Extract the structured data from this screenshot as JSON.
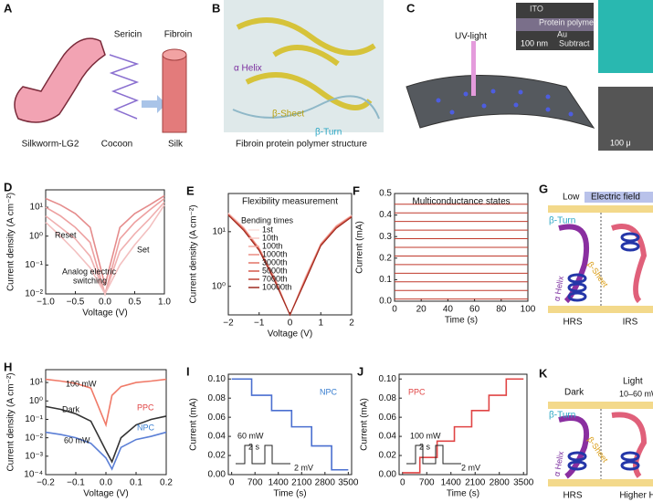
{
  "figure": {
    "a": {
      "label": "A",
      "sericin": "Sericin",
      "fibroin": "Fibroin",
      "silkworm": "Silkworm-LG2",
      "cocoon": "Cocoon",
      "silk": "Silk"
    },
    "b": {
      "label": "B",
      "helix": "α Helix",
      "sheet": "β-Sheet",
      "turn": "β-Turn",
      "caption": "Fibroin protein polymer structure"
    },
    "c": {
      "label": "C",
      "uv": "UV-light",
      "ito": "ITO",
      "protein": "Protein polymer",
      "au": "Au",
      "substrate": "Subtract",
      "scale1": "100 nm",
      "scale2": "100 μ"
    },
    "g": {
      "label": "G",
      "low": "Low",
      "field": "Electric field",
      "turn": "β-Turn",
      "sheet": "β-Sheet",
      "helix": "α Helix",
      "left": "HRS",
      "right": "IRS"
    },
    "k": {
      "label": "K",
      "dark": "Dark",
      "light": "Light",
      "power": "10–60 mW",
      "turn": "β-Turn",
      "sheet": "β-Sheet",
      "helix": "α Helix",
      "left": "HRS",
      "right": "Higher HRS"
    }
  },
  "chart_data": [
    {
      "panel": "D",
      "type": "line",
      "xlabel": "Voltage (V)",
      "ylabel": "Current density (A cm⁻²)",
      "yscale": "log",
      "x": [
        -1,
        -0.75,
        -0.5,
        -0.25,
        0,
        0.25,
        0.5,
        0.75,
        1
      ],
      "xlim": [
        -1,
        1
      ],
      "xticks": [
        {
          "value": -1,
          "label": "−1.0"
        },
        {
          "value": -0.5,
          "label": "−0.5"
        },
        {
          "value": 0,
          "label": "0.0"
        },
        {
          "value": 0.5,
          "label": "0.5"
        },
        {
          "value": 1,
          "label": "1.0"
        }
      ],
      "ylim": [
        0.01,
        40
      ],
      "yticks": [
        {
          "value": 0.01,
          "label": "10⁻²"
        },
        {
          "value": 0.1,
          "label": "10⁻¹"
        },
        {
          "value": 1,
          "label": "10⁰"
        },
        {
          "value": 10,
          "label": "10¹"
        }
      ],
      "annotations": [
        "Reset",
        "Set",
        "Analog electric",
        "switching"
      ],
      "series": [
        {
          "color": "#e58c8c",
          "values": [
            20,
            12,
            6,
            2,
            0.02,
            2,
            6,
            12,
            25
          ]
        },
        {
          "color": "#eda0a0",
          "values": [
            10,
            5,
            2,
            0.6,
            0.01,
            0.8,
            3,
            8,
            20
          ]
        },
        {
          "color": "#f0b0b0",
          "values": [
            5,
            2,
            0.8,
            0.2,
            0.01,
            0.3,
            1.2,
            4,
            15
          ]
        },
        {
          "color": "#f3c0c0",
          "values": [
            3,
            1,
            0.3,
            0.08,
            0.01,
            0.1,
            0.5,
            2,
            12
          ]
        }
      ]
    },
    {
      "panel": "E",
      "type": "line",
      "title": "Flexibility measurement",
      "xlabel": "Voltage (V)",
      "ylabel": "Current density (A cm⁻²)",
      "yscale": "log",
      "legend_title": "Bending times",
      "x": [
        -2,
        -1.5,
        -1,
        -0.5,
        0,
        0.5,
        1,
        1.5,
        2
      ],
      "xlim": [
        -2,
        2
      ],
      "xticks": [
        {
          "value": -2,
          "label": "−2"
        },
        {
          "value": -1,
          "label": "−1"
        },
        0,
        1,
        2
      ],
      "ylim": [
        0.3,
        50
      ],
      "yticks": [
        {
          "value": 1,
          "label": "10⁰"
        },
        {
          "value": 10,
          "label": "10¹"
        }
      ],
      "series": [
        {
          "name": "1st",
          "color": "#fbe0dc",
          "values": [
            22,
            12,
            5,
            1.5,
            0.3,
            1.5,
            6,
            13,
            20
          ]
        },
        {
          "name": "10th",
          "color": "#f7c8c2",
          "values": [
            22,
            12,
            5.1,
            1.5,
            0.3,
            1.5,
            6.1,
            13,
            20
          ]
        },
        {
          "name": "100th",
          "color": "#f2aaa2",
          "values": [
            21,
            11.5,
            5,
            1.4,
            0.3,
            1.4,
            6,
            12.5,
            19.5
          ]
        },
        {
          "name": "1000th",
          "color": "#eb8e84",
          "values": [
            21,
            11.5,
            4.9,
            1.4,
            0.3,
            1.4,
            5.9,
            12.5,
            19.5
          ]
        },
        {
          "name": "3000th",
          "color": "#e27366",
          "values": [
            20.5,
            11,
            4.8,
            1.35,
            0.3,
            1.35,
            5.8,
            12,
            19
          ]
        },
        {
          "name": "5000th",
          "color": "#d4584a",
          "values": [
            20.5,
            11,
            4.7,
            1.3,
            0.3,
            1.3,
            5.7,
            12,
            19
          ]
        },
        {
          "name": "7000th",
          "color": "#bf4033",
          "values": [
            20,
            10.5,
            4.6,
            1.3,
            0.3,
            1.3,
            5.6,
            11.5,
            18.5
          ]
        },
        {
          "name": "10000th",
          "color": "#9e2b20",
          "values": [
            20,
            10.5,
            4.5,
            1.25,
            0.3,
            1.25,
            5.5,
            11.5,
            18.5
          ]
        }
      ]
    },
    {
      "panel": "F",
      "type": "line",
      "title": "Multiconductance states",
      "xlabel": "Time (s)",
      "ylabel": "Current (mA)",
      "x": [
        0,
        100
      ],
      "xlim": [
        0,
        100
      ],
      "xticks": [
        0,
        20,
        40,
        60,
        80,
        100
      ],
      "ylim": [
        0,
        0.5
      ],
      "yticks": [
        {
          "value": 0,
          "label": "0.0"
        },
        0.1,
        0.2,
        0.3,
        0.4,
        0.5
      ],
      "series": [
        {
          "color": "#c0392b",
          "values": [
            0.01,
            0.01
          ]
        },
        {
          "color": "#c0392b",
          "values": [
            0.05,
            0.05
          ]
        },
        {
          "color": "#c0392b",
          "values": [
            0.09,
            0.09
          ]
        },
        {
          "color": "#c0392b",
          "values": [
            0.13,
            0.13
          ]
        },
        {
          "color": "#c0392b",
          "values": [
            0.17,
            0.17
          ]
        },
        {
          "color": "#c0392b",
          "values": [
            0.21,
            0.21
          ]
        },
        {
          "color": "#c0392b",
          "values": [
            0.25,
            0.25
          ]
        },
        {
          "color": "#c0392b",
          "values": [
            0.29,
            0.29
          ]
        },
        {
          "color": "#c0392b",
          "values": [
            0.33,
            0.33
          ]
        },
        {
          "color": "#c0392b",
          "values": [
            0.37,
            0.37
          ]
        },
        {
          "color": "#c0392b",
          "values": [
            0.41,
            0.41
          ]
        },
        {
          "color": "#c0392b",
          "values": [
            0.45,
            0.45
          ]
        }
      ]
    },
    {
      "panel": "H",
      "type": "line",
      "xlabel": "Voltage (V)",
      "ylabel": "Current density (A cm⁻²)",
      "yscale": "log",
      "x": [
        -0.2,
        -0.15,
        -0.1,
        -0.05,
        0,
        0.02,
        0.05,
        0.1,
        0.15,
        0.2
      ],
      "xlim": [
        -0.2,
        0.2
      ],
      "xticks": [
        {
          "value": -0.2,
          "label": "−0.2"
        },
        {
          "value": -0.1,
          "label": "−0.1"
        },
        {
          "value": 0,
          "label": "0.0"
        },
        0.1,
        0.2
      ],
      "ylim": [
        0.0001,
        50
      ],
      "yticks": [
        {
          "value": 0.0001,
          "label": "10⁻⁴"
        },
        {
          "value": 0.001,
          "label": "10⁻³"
        },
        {
          "value": 0.01,
          "label": "10⁻²"
        },
        {
          "value": 0.1,
          "label": "10⁻¹"
        },
        {
          "value": 1,
          "label": "10⁰"
        },
        {
          "value": 10,
          "label": "10¹"
        }
      ],
      "annotations": [
        "100 mW",
        "Dark",
        "60 mW",
        "PPC",
        "NPC"
      ],
      "series": [
        {
          "color": "#f07a68",
          "values": [
            15,
            12,
            9,
            5,
            0.05,
            2,
            6,
            10,
            12,
            15
          ]
        },
        {
          "color": "#333333",
          "values": [
            0.5,
            0.35,
            0.2,
            0.08,
            0.002,
            0.0005,
            0.01,
            0.05,
            0.1,
            0.15
          ]
        },
        {
          "color": "#5b7fd6",
          "values": [
            0.02,
            0.015,
            0.01,
            0.005,
            0.0008,
            0.0002,
            0.003,
            0.008,
            0.012,
            0.02
          ]
        }
      ]
    },
    {
      "panel": "I",
      "type": "line",
      "xlabel": "Time (s)",
      "ylabel": "Current (mA)",
      "annotations": [
        "NPC"
      ],
      "inset": [
        "60 mW",
        "2 s",
        "2 mV"
      ],
      "x": [
        0,
        600,
        600,
        1200,
        1200,
        1800,
        1800,
        2400,
        2400,
        3000,
        3000,
        3500
      ],
      "xlim": [
        -100,
        3600
      ],
      "xticks": [
        0,
        700,
        1400,
        2100,
        2800,
        3500
      ],
      "ylim": [
        0,
        0.105
      ],
      "yticks": [
        {
          "value": 0,
          "label": "0.00"
        },
        0.02,
        0.04,
        0.06,
        0.08,
        {
          "value": 0.1,
          "label": "0.10"
        }
      ],
      "series": [
        {
          "color": "#4a6fd0",
          "values": [
            0.1,
            0.1,
            0.083,
            0.083,
            0.067,
            0.067,
            0.05,
            0.05,
            0.03,
            0.03,
            0.005,
            0.005
          ]
        }
      ]
    },
    {
      "panel": "J",
      "type": "line",
      "xlabel": "Time (s)",
      "ylabel": "Current (mA)",
      "annotations": [
        "PPC"
      ],
      "inset": [
        "100 mW",
        "2 s",
        "2 mV"
      ],
      "x": [
        0,
        500,
        500,
        1000,
        1000,
        1500,
        1500,
        2000,
        2000,
        2500,
        2500,
        3000,
        3000,
        3500
      ],
      "xlim": [
        -100,
        3600
      ],
      "xticks": [
        0,
        700,
        1400,
        2100,
        2800,
        3500
      ],
      "ylim": [
        0,
        0.105
      ],
      "yticks": [
        {
          "value": 0,
          "label": "0.00"
        },
        0.02,
        0.04,
        0.06,
        0.08,
        {
          "value": 0.1,
          "label": "0.10"
        }
      ],
      "series": [
        {
          "color": "#e04545",
          "values": [
            0.002,
            0.002,
            0.018,
            0.018,
            0.035,
            0.035,
            0.05,
            0.05,
            0.067,
            0.067,
            0.083,
            0.083,
            0.1,
            0.1
          ]
        }
      ]
    }
  ]
}
